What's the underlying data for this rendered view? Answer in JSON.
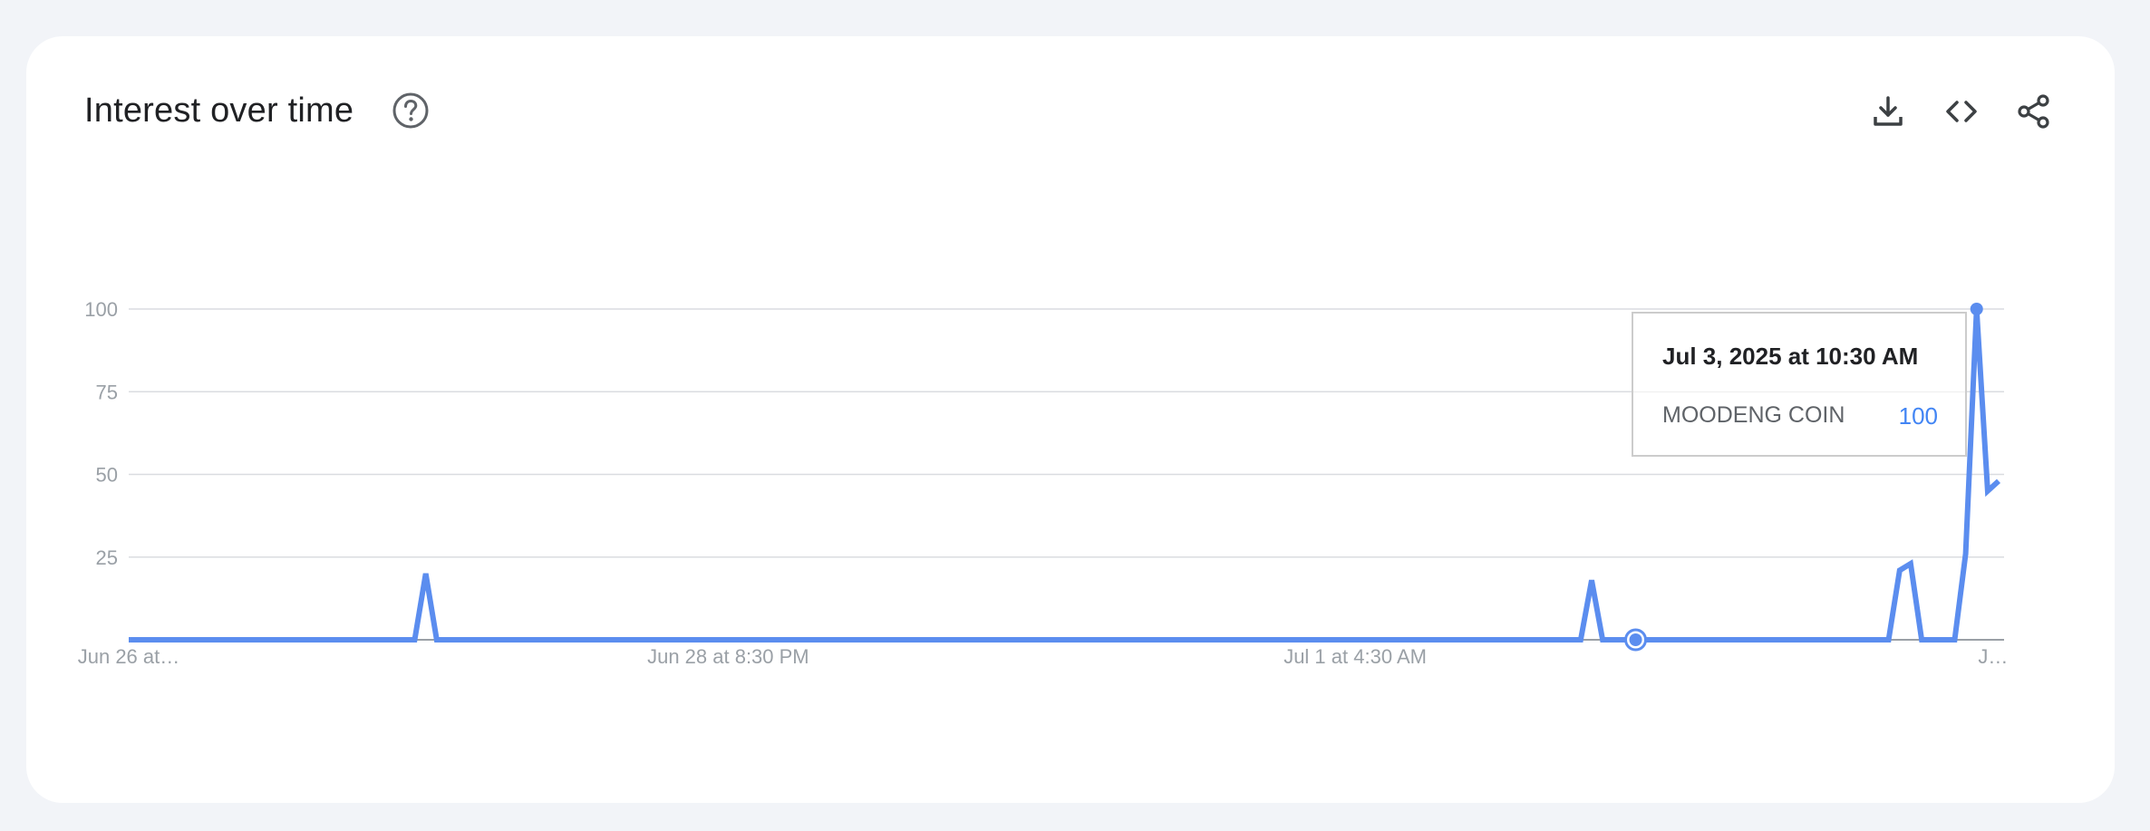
{
  "header": {
    "title": "Interest over time",
    "help_icon": "help-circle-icon",
    "actions": [
      {
        "icon": "download-icon",
        "label": "Download"
      },
      {
        "icon": "embed-code-icon",
        "label": "Embed"
      },
      {
        "icon": "share-icon",
        "label": "Share"
      }
    ]
  },
  "tooltip": {
    "date": "Jul 3, 2025 at 10:30 AM",
    "series": "MOODENG COIN",
    "value": "100"
  },
  "colors": {
    "line": "#5b8def",
    "grid": "#dadce0",
    "axis": "#9aa0a6",
    "tooltip_value": "#4285f4"
  },
  "chart_data": {
    "type": "line",
    "title": "Interest over time",
    "xlabel": "",
    "ylabel": "",
    "ylim": [
      0,
      100
    ],
    "yticks": [
      25,
      50,
      75,
      100
    ],
    "grid": true,
    "legend": "none",
    "x_tick_labels": [
      {
        "label": "Jun 26 at…",
        "index": 0
      },
      {
        "label": "Jun 28 at 8:30 PM",
        "index": 54.5
      },
      {
        "label": "Jul 1 at 4:30 AM",
        "index": 111.5
      },
      {
        "label": "J…",
        "index": 169.5
      }
    ],
    "series": [
      {
        "name": "MOODENG COIN",
        "points": [
          [
            0,
            0
          ],
          [
            26,
            0
          ],
          [
            27,
            20
          ],
          [
            28,
            0
          ],
          [
            132,
            0
          ],
          [
            133,
            18
          ],
          [
            134,
            0
          ],
          [
            160,
            0
          ],
          [
            161,
            21
          ],
          [
            162,
            23
          ],
          [
            163,
            0
          ],
          [
            166,
            0
          ],
          [
            167,
            26
          ],
          [
            168,
            100
          ],
          [
            169,
            45
          ],
          [
            170,
            48
          ]
        ]
      }
    ],
    "highlight_points": [
      {
        "index": 168,
        "value": 100
      },
      {
        "index": 137,
        "value": 0
      }
    ]
  }
}
